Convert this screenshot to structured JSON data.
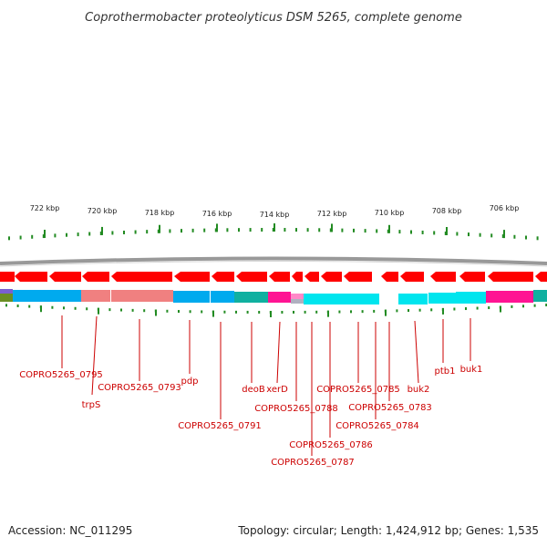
{
  "title": "Coprothermobacter proteolyticus DSM 5265, complete genome",
  "footer": {
    "accession": "Accession: NC_011295",
    "topology": "Topology: circular; Length: 1,424,912 bp; Genes: 1,535"
  },
  "colors": {
    "gene_arrow": "#ff0000",
    "ticks": "#228b22",
    "labels": "#cc0000",
    "backbone": "#999999"
  },
  "kbp_labels": [
    "722 kbp",
    "720 kbp",
    "718 kbp",
    "716 kbp",
    "714 kbp",
    "712 kbp",
    "710 kbp",
    "708 kbp",
    "706 kbp"
  ],
  "gene_labels": [
    "COPRO5265_0795",
    "trpS",
    "COPRO5265_0793",
    "pdp",
    "COPRO5265_0791",
    "deoB",
    "xerD",
    "COPRO5265_0788",
    "COPRO5265_0787",
    "COPRO5265_0786",
    "COPRO5265_0785",
    "COPRO5265_0784",
    "COPRO5265_0783",
    "buk2",
    "ptb1",
    "buk1"
  ]
}
